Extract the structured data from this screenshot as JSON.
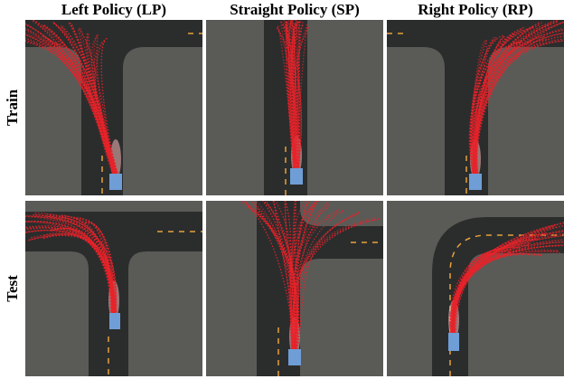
{
  "column_titles": [
    "Left Policy (LP)",
    "Straight Policy (SP)",
    "Right Policy (RP)"
  ],
  "row_labels": [
    "Train",
    "Test"
  ],
  "colors": {
    "grass": "#5a5b57",
    "road": "#2b2d2d",
    "lane_marking": "#e8a23a",
    "vehicle": "#6f9ed6",
    "trajectory": "#e8232a",
    "trajectory_light": "#f7b7b7"
  },
  "panels": [
    {
      "row": "Train",
      "policy": "LP",
      "scene": "t-junction-left",
      "vehicle_icon": "car-icon"
    },
    {
      "row": "Train",
      "policy": "SP",
      "scene": "straight-road",
      "vehicle_icon": "car-icon"
    },
    {
      "row": "Train",
      "policy": "RP",
      "scene": "corner-right",
      "vehicle_icon": "car-icon"
    },
    {
      "row": "Test",
      "policy": "LP",
      "scene": "t-junction",
      "vehicle_icon": "car-icon"
    },
    {
      "row": "Test",
      "policy": "SP",
      "scene": "junction-right-branch",
      "vehicle_icon": "car-icon"
    },
    {
      "row": "Test",
      "policy": "RP",
      "scene": "curve-right",
      "vehicle_icon": "car-icon"
    }
  ]
}
